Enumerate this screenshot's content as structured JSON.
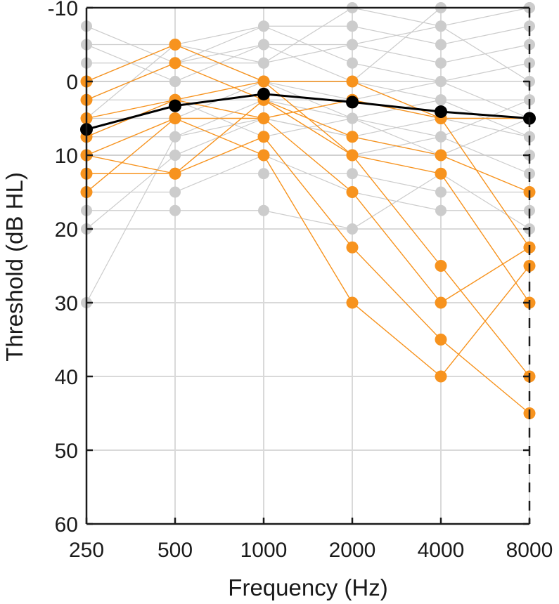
{
  "chart_data": {
    "type": "line",
    "xlabel": "Frequency (Hz)",
    "ylabel": "Threshold (dB HL)",
    "x_categories": [
      "250",
      "500",
      "1000",
      "2000",
      "4000",
      "8000"
    ],
    "y_ticks": [
      -10,
      0,
      10,
      20,
      30,
      40,
      50,
      60
    ],
    "ylim": [
      -10,
      60
    ],
    "y_inverted": true,
    "grid": true,
    "colors": {
      "background_series": "#cccccc",
      "highlight_series": "#f7931e",
      "mean_series": "#000000"
    },
    "background_series": [
      [
        -7.5,
        -2.5,
        -2.5,
        -10,
        -7.5,
        -10
      ],
      [
        -5,
        -5,
        -7.5,
        -7.5,
        -5,
        -7.5
      ],
      [
        -5,
        0,
        -5,
        -5,
        -2.5,
        -5
      ],
      [
        -2.5,
        -2.5,
        -7.5,
        -2.5,
        0,
        -2.5
      ],
      [
        0,
        -5,
        -2.5,
        -5,
        -7.5,
        0
      ],
      [
        0,
        0,
        0,
        0,
        2.5,
        2.5
      ],
      [
        2.5,
        2.5,
        2.5,
        2.5,
        5,
        5
      ],
      [
        5,
        5,
        0,
        5,
        2.5,
        7.5
      ],
      [
        7.5,
        7.5,
        5,
        7.5,
        10,
        10
      ],
      [
        10,
        10,
        10,
        10,
        7.5,
        12.5
      ],
      [
        12.5,
        12.5,
        12.5,
        12.5,
        15,
        15
      ],
      [
        15,
        15,
        10,
        15,
        17.5,
        17.5
      ],
      [
        17.5,
        17.5,
        17.5,
        20,
        12.5,
        20
      ],
      [
        20,
        10,
        5,
        7.5,
        5,
        7.5
      ],
      [
        30,
        7.5,
        2.5,
        5,
        10,
        5
      ],
      [
        2.5,
        -2.5,
        -5,
        0,
        -10,
        -10
      ],
      [
        5,
        -5,
        0,
        2.5,
        0,
        5
      ],
      [
        7.5,
        2.5,
        7.5,
        5,
        7.5,
        2.5
      ]
    ],
    "highlight_series": [
      [
        0,
        -5,
        0,
        0,
        5,
        5
      ],
      [
        2.5,
        -2.5,
        2.5,
        7.5,
        10,
        15
      ],
      [
        5,
        2.5,
        0,
        10,
        25,
        40
      ],
      [
        10,
        5,
        5,
        15,
        30,
        22.5
      ],
      [
        12.5,
        12.5,
        7.5,
        22.5,
        35,
        45
      ],
      [
        15,
        5,
        10,
        30,
        40,
        25
      ],
      [
        10,
        12.5,
        2.5,
        10,
        12.5,
        30
      ],
      [
        7.5,
        2.5,
        5,
        2.5,
        5,
        22.5
      ]
    ],
    "mean_series": [
      6.5,
      3.3,
      1.7,
      2.8,
      4.1,
      5.0
    ]
  }
}
